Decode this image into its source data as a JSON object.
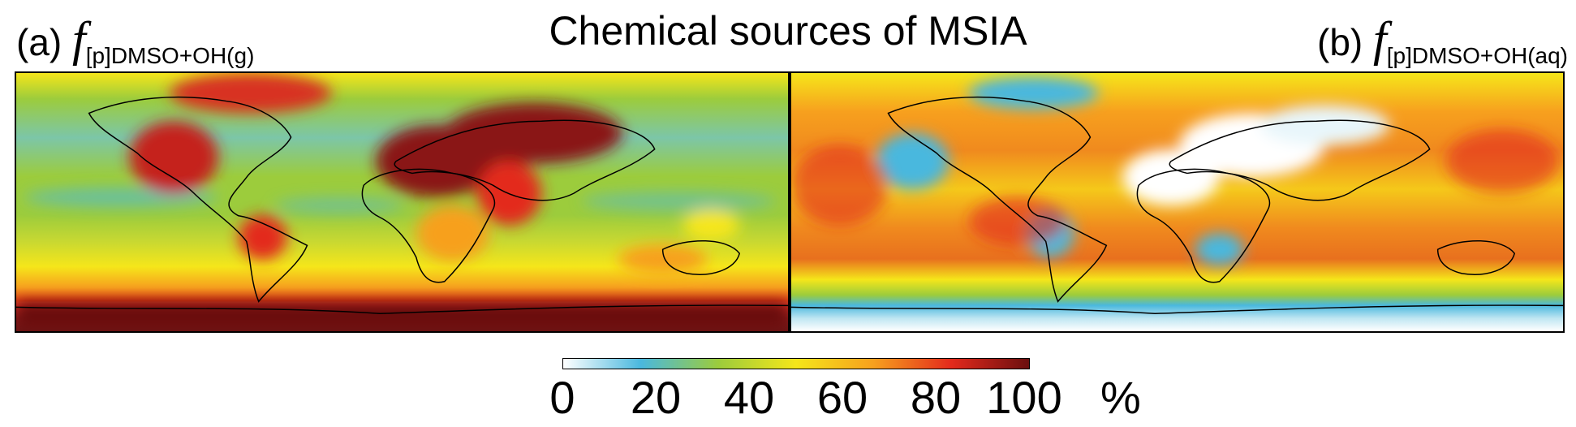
{
  "title": "Chemical sources of MSIA",
  "panels": [
    {
      "prefix": "(a)",
      "symbol": "f",
      "subscript": "[p]DMSO+OH(g)"
    },
    {
      "prefix": "(b)",
      "symbol": "f",
      "subscript": "[p]DMSO+OH(aq)"
    }
  ],
  "colorbar": {
    "ticks": [
      "0",
      "20",
      "40",
      "60",
      "80",
      "100"
    ],
    "unit": "%",
    "range": [
      0,
      100
    ],
    "colors": [
      "#ffffff",
      "#4ab8de",
      "#9ccc3c",
      "#f5e61a",
      "#f7a01e",
      "#e32a1c",
      "#6b0f0f"
    ]
  }
}
